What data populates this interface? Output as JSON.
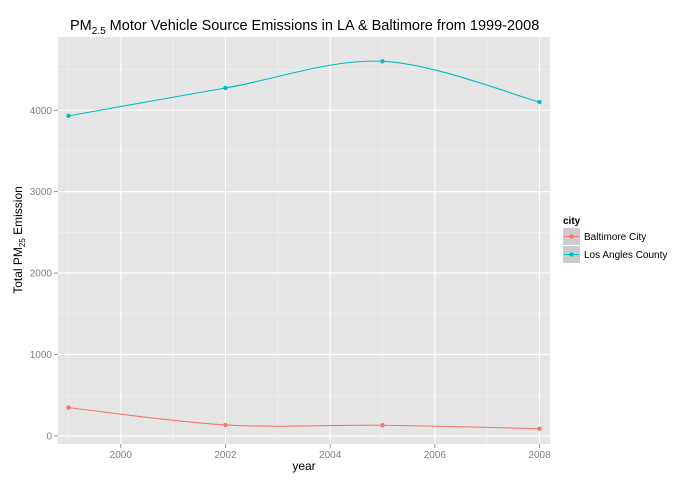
{
  "chart_data": {
    "type": "line",
    "title": {
      "prefix": "PM",
      "subscript": "2.5",
      "suffix": " Motor Vehicle Source Emissions in  LA & Baltimore from 1999-2008"
    },
    "xlabel": "year",
    "ylabel": {
      "prefix": "Total PM",
      "subscript": "25",
      "suffix": " Emission"
    },
    "xlim": [
      1998.8,
      2008.2
    ],
    "ylim": [
      -100,
      4900
    ],
    "x_ticks": [
      2000,
      2002,
      2004,
      2006,
      2008
    ],
    "y_ticks": [
      0,
      1000,
      2000,
      3000,
      4000
    ],
    "x_tick_labels": [
      "2000",
      "2002",
      "2004",
      "2006",
      "2008"
    ],
    "y_tick_labels": [
      "0",
      "1000",
      "2000",
      "3000",
      "4000"
    ],
    "grid": true,
    "legend": {
      "title": "city",
      "position": "right",
      "entries": [
        "Baltimore City",
        "Los Angles County"
      ]
    },
    "series": [
      {
        "name": "Baltimore City",
        "color": "#f8766d",
        "x": [
          1999,
          2002,
          2005,
          2008
        ],
        "values": [
          346.8,
          134.3,
          130.4,
          88.3
        ]
      },
      {
        "name": "Los Angles County",
        "color": "#00bfc4",
        "x": [
          1999,
          2002,
          2005,
          2008
        ],
        "values": [
          3931.1,
          4273.7,
          4601.4,
          4101.3
        ]
      }
    ]
  },
  "colors": {
    "panel_background": "#e5e5e5",
    "grid_major": "#ffffff",
    "grid_minor": "#f2f2f2",
    "tick_text": "#7f7f7f"
  }
}
